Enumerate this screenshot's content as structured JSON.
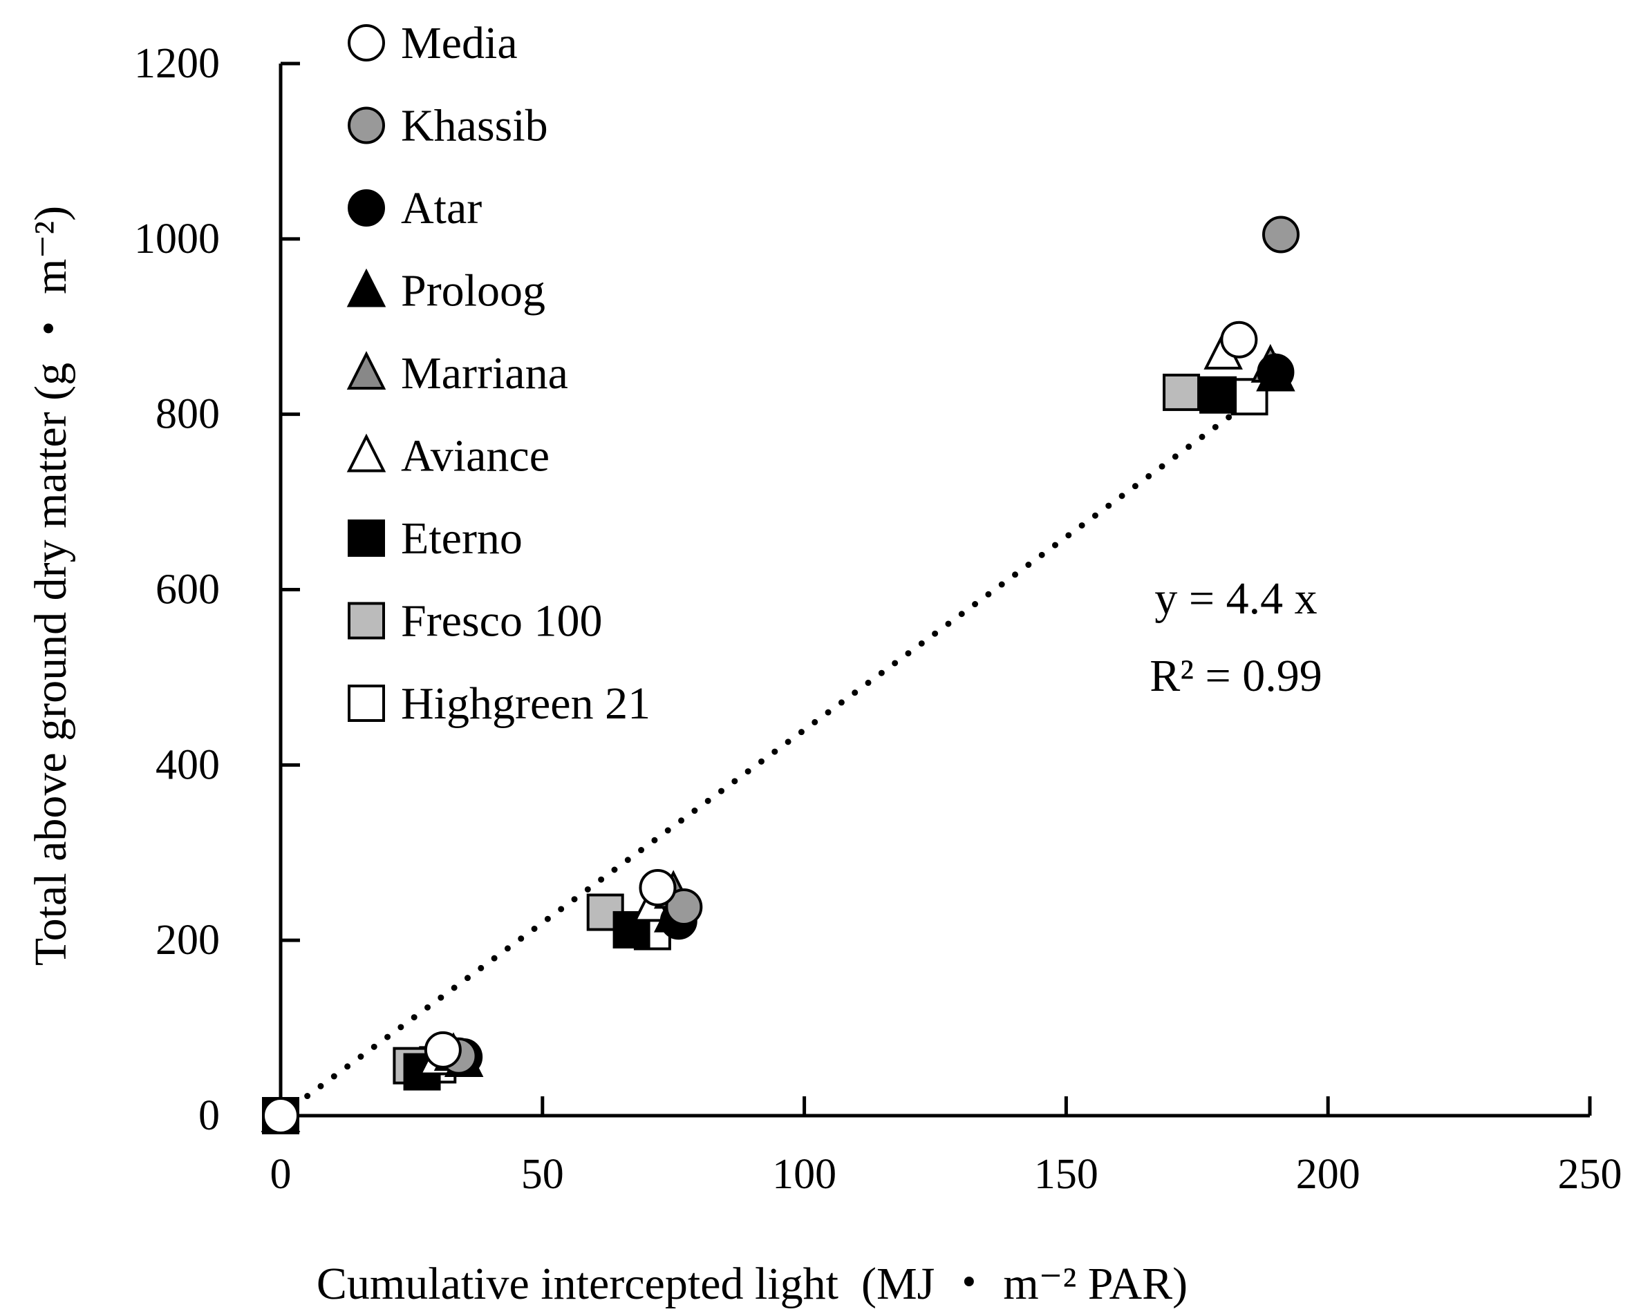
{
  "chart_data": {
    "type": "scatter",
    "xlabel": "Cumulative intercepted light (MJ ・ m⁻² PAR)",
    "ylabel": "Total above ground dry matter (g ・ m⁻²)",
    "xlim": [
      0,
      250
    ],
    "ylim": [
      0,
      1200
    ],
    "xticks": [
      0,
      50,
      100,
      150,
      200,
      250
    ],
    "yticks": [
      0,
      200,
      400,
      600,
      800,
      1000,
      1200
    ],
    "grid": false,
    "legend_position": "top-left",
    "trendline": {
      "style": "dotted",
      "slope": 4.4,
      "x_range": [
        0,
        188
      ],
      "equation": "y = 4.4 x",
      "r_squared": "R² = 0.99"
    },
    "series": [
      {
        "name": "Media",
        "marker": "circle",
        "fill": "#ffffff",
        "x": [
          0,
          31,
          72,
          183
        ],
        "y": [
          0,
          75,
          260,
          885
        ]
      },
      {
        "name": "Khassib",
        "marker": "circle",
        "fill": "#999999",
        "x": [
          0,
          34,
          77,
          191
        ],
        "y": [
          0,
          68,
          238,
          1005
        ]
      },
      {
        "name": "Atar",
        "marker": "circle",
        "fill": "#000000",
        "x": [
          0,
          35,
          76,
          190
        ],
        "y": [
          0,
          67,
          222,
          848
        ]
      },
      {
        "name": "Proloog",
        "marker": "triangle",
        "fill": "#000000",
        "x": [
          0,
          35,
          75,
          190
        ],
        "y": [
          0,
          63,
          228,
          845
        ]
      },
      {
        "name": "Marriana",
        "marker": "triangle",
        "fill": "#888888",
        "x": [
          0,
          33,
          75,
          189
        ],
        "y": [
          0,
          70,
          255,
          855
        ]
      },
      {
        "name": "Aviance",
        "marker": "triangle",
        "fill": "#ffffff",
        "x": [
          0,
          30,
          71,
          180
        ],
        "y": [
          0,
          65,
          240,
          870
        ]
      },
      {
        "name": "Eterno",
        "marker": "square",
        "fill": "#000000",
        "x": [
          0,
          27,
          67,
          179
        ],
        "y": [
          0,
          50,
          212,
          822
        ]
      },
      {
        "name": "Fresco 100",
        "marker": "square",
        "fill": "#bbbbbb",
        "x": [
          0,
          25,
          62,
          172
        ],
        "y": [
          0,
          57,
          232,
          825
        ]
      },
      {
        "name": "Highgreen 21",
        "marker": "square",
        "fill": "#ffffff",
        "x": [
          0,
          30,
          71,
          185
        ],
        "y": [
          0,
          58,
          210,
          820
        ]
      }
    ]
  }
}
